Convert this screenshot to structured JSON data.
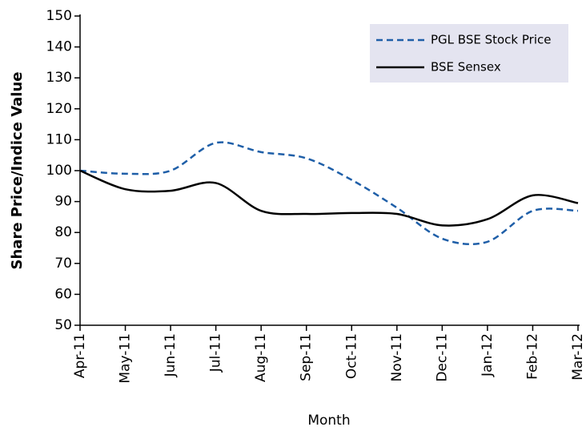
{
  "chart_data": {
    "type": "line",
    "xlabel": "Month",
    "ylabel": "Share Price/Indice Value",
    "categories": [
      "Apr-11",
      "May-11",
      "Jun-11",
      "Jul-11",
      "Aug-11",
      "Sep-11",
      "Oct-11",
      "Nov-11",
      "Dec-11",
      "Jan-12",
      "Feb-12",
      "Mar-12"
    ],
    "series": [
      {
        "name": "PGL BSE Stock Price",
        "color": "#1f5fa8",
        "dashed": true,
        "values": [
          100,
          99,
          100,
          109,
          106,
          104,
          97,
          88,
          78,
          77,
          87,
          87
        ]
      },
      {
        "name": "BSE Sensex",
        "color": "#000000",
        "dashed": false,
        "values": [
          100,
          94,
          93.5,
          96,
          87,
          86,
          86.3,
          86,
          82.3,
          84.3,
          92,
          89.5
        ]
      }
    ],
    "ylim": [
      50,
      150
    ],
    "yticks": [
      50,
      60,
      70,
      80,
      90,
      100,
      110,
      120,
      130,
      140,
      150
    ],
    "legend": "upper right"
  }
}
